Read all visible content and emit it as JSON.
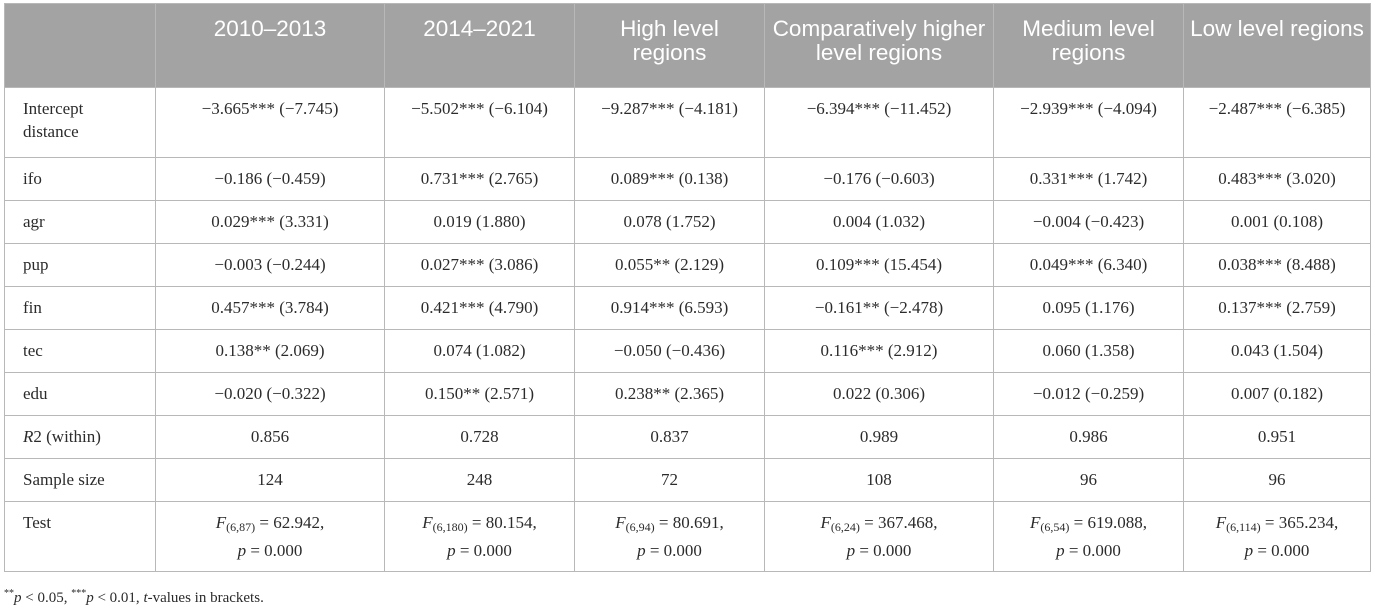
{
  "columns": [
    "",
    "2010–2013",
    "2014–2021",
    "High level regions",
    "Comparatively higher level regions",
    "Medium level regions",
    "Low level regions"
  ],
  "rows": [
    {
      "label": "Intercept distance",
      "cells": [
        "−3.665*** (−7.745)",
        "−5.502*** (−6.104)",
        "−9.287*** (−4.181)",
        "−6.394*** (−11.452)",
        "−2.939*** (−4.094)",
        "−2.487*** (−6.385)"
      ]
    },
    {
      "label": "ifo",
      "cells": [
        "−0.186 (−0.459)",
        "0.731*** (2.765)",
        "0.089*** (0.138)",
        "−0.176 (−0.603)",
        "0.331*** (1.742)",
        "0.483*** (3.020)"
      ]
    },
    {
      "label": "agr",
      "cells": [
        "0.029*** (3.331)",
        "0.019 (1.880)",
        "0.078 (1.752)",
        "0.004 (1.032)",
        "−0.004 (−0.423)",
        "0.001 (0.108)"
      ]
    },
    {
      "label": "pup",
      "cells": [
        "−0.003 (−0.244)",
        "0.027*** (3.086)",
        "0.055** (2.129)",
        "0.109*** (15.454)",
        "0.049*** (6.340)",
        "0.038*** (8.488)"
      ]
    },
    {
      "label": "fin",
      "cells": [
        "0.457*** (3.784)",
        "0.421*** (4.790)",
        "0.914*** (6.593)",
        "−0.161** (−2.478)",
        "0.095 (1.176)",
        "0.137*** (2.759)"
      ]
    },
    {
      "label": "tec",
      "cells": [
        "0.138** (2.069)",
        "0.074 (1.082)",
        "−0.050 (−0.436)",
        "0.116*** (2.912)",
        "0.060 (1.358)",
        "0.043 (1.504)"
      ]
    },
    {
      "label": "edu",
      "cells": [
        "−0.020 (−0.322)",
        "0.150** (2.571)",
        "0.238** (2.365)",
        "0.022 (0.306)",
        "−0.012 (−0.259)",
        "0.007 (0.182)"
      ]
    },
    {
      "label_italic": "R",
      "label_rest": "2 (within)",
      "cells": [
        "0.856",
        "0.728",
        "0.837",
        "0.989",
        "0.986",
        "0.951"
      ]
    },
    {
      "label": "Sample size",
      "cells": [
        "124",
        "248",
        "72",
        "108",
        "96",
        "96"
      ]
    }
  ],
  "test": {
    "label": "Test",
    "cells": [
      {
        "f": "F",
        "sub": "(6,87)",
        "val": " = 62.942,",
        "p": "p",
        "pval": " = 0.000"
      },
      {
        "f": "F",
        "sub": "(6,180)",
        "val": " = 80.154,",
        "p": "p",
        "pval": " = 0.000"
      },
      {
        "f": "F",
        "sub": "(6,94)",
        "val": " = 80.691,",
        "p": "p",
        "pval": " = 0.000"
      },
      {
        "f": "F",
        "sub": "(6,24)",
        "val": " = 367.468,",
        "p": "p",
        "pval": " = 0.000"
      },
      {
        "f": "F",
        "sub": "(6,54)",
        "val": " = 619.088,",
        "p": "p",
        "pval": " = 0.000"
      },
      {
        "f": "F",
        "sub": "(6,114)",
        "val": " = 365.234,",
        "p": "p",
        "pval": " = 0.000"
      }
    ]
  },
  "note": {
    "s1": "**",
    "p1": "p",
    "t1": " < 0.05, ",
    "s2": "***",
    "p2": "p",
    "t2": " < 0.01, ",
    "t": "t",
    "t3": "-values in brackets."
  }
}
